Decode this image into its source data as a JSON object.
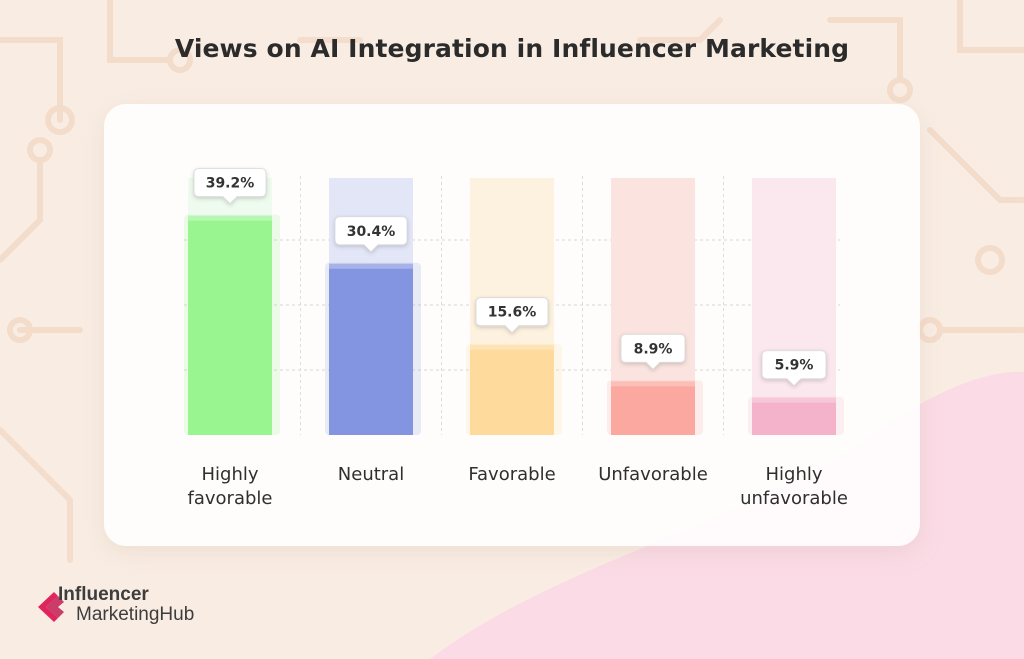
{
  "chart_data": {
    "type": "bar",
    "title": "Views on AI Integration in Influencer Marketing",
    "categories": [
      [
        "Highly",
        "favorable"
      ],
      [
        "Neutral"
      ],
      [
        "Favorable"
      ],
      [
        "Unfavorable"
      ],
      [
        "Highly",
        "unfavorable"
      ]
    ],
    "values": [
      39.2,
      30.4,
      15.6,
      8.9,
      5.9
    ],
    "value_labels": [
      "39.2%",
      "30.4%",
      "15.6%",
      "8.9%",
      "5.9%"
    ],
    "colors": [
      "#98f590",
      "#8394e0",
      "#fedb9c",
      "#fba9a0",
      "#f5b3cb"
    ],
    "track_colors": [
      "#eefbee",
      "#e2e6f7",
      "#fdf1df",
      "#fbe4e0",
      "#fbe7ee"
    ],
    "ylim": [
      0,
      47
    ],
    "grid": true,
    "legend": "none"
  },
  "brand": {
    "line1": "Influencer",
    "line2": "MarketingHub",
    "accent": "#e0245e"
  }
}
